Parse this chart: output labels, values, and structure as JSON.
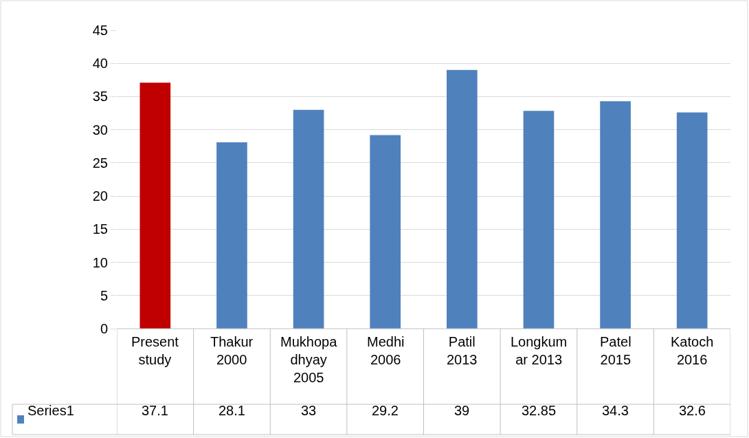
{
  "chart_data": {
    "type": "bar",
    "categories": [
      "Present study",
      "Thakur 2000",
      "Mukhopadhyay 2005",
      "Medhi 2006",
      "Patil 2013",
      "Longkumar 2013",
      "Patel 2015",
      "Katoch 2016"
    ],
    "series": [
      {
        "name": "Series1",
        "color": "#4f81bd",
        "colors": [
          "#c00000",
          "#4f81bd",
          "#4f81bd",
          "#4f81bd",
          "#4f81bd",
          "#4f81bd",
          "#4f81bd",
          "#4f81bd"
        ],
        "values": [
          37.1,
          28.1,
          33,
          29.2,
          39,
          32.85,
          34.3,
          32.6
        ]
      }
    ],
    "ylim": [
      0,
      45
    ],
    "yticks": [
      0,
      5,
      10,
      15,
      20,
      25,
      30,
      35,
      40,
      45
    ],
    "grid": "y",
    "data_labels": true
  }
}
